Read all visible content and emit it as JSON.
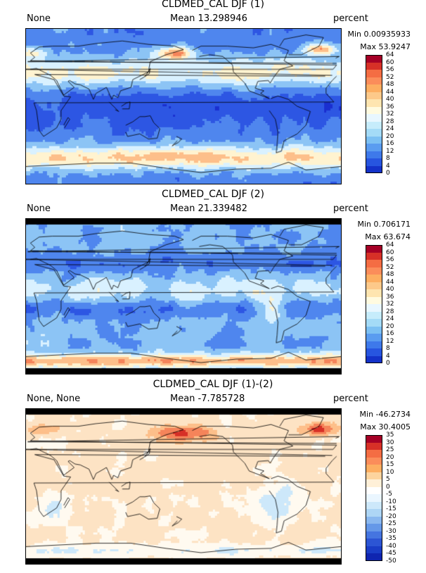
{
  "panels": [
    {
      "title": "CLDMED_CAL DJF (1)",
      "left_label": "None",
      "mean_text": "Mean 13.298946",
      "units": "percent",
      "min_text": "Min 0.00935933",
      "max_text": "Max 53.9247",
      "colorbar_ticks": [
        "64",
        "60",
        "56",
        "52",
        "48",
        "44",
        "40",
        "36",
        "32",
        "28",
        "24",
        "20",
        "16",
        "12",
        "8",
        "4",
        "0"
      ],
      "colorbar_colors": [
        "#a50026",
        "#d73027",
        "#f46d43",
        "#fb8d5a",
        "#fdae61",
        "#fdc98a",
        "#fee5b0",
        "#fffbe0",
        "#e8f7ff",
        "#c6ecfb",
        "#a4dbf7",
        "#7cc0f3",
        "#5a9cf0",
        "#3e79ea",
        "#2755e0",
        "#1432c9"
      ],
      "map_palette": [
        "#1a2fd0",
        "#2d56e3",
        "#4f86ee",
        "#8cc4f5",
        "#d9f1ff",
        "#fff3d0",
        "#fdbf8a",
        "#f5845a"
      ],
      "map_variant": 1
    },
    {
      "title": "CLDMED_CAL DJF (2)",
      "left_label": "None",
      "mean_text": "Mean 21.339482",
      "units": "percent",
      "min_text": "Min 0.706171",
      "max_text": "Max 63.674",
      "colorbar_ticks": [
        "64",
        "60",
        "56",
        "52",
        "48",
        "44",
        "40",
        "36",
        "32",
        "28",
        "24",
        "20",
        "16",
        "12",
        "8",
        "4",
        "0"
      ],
      "colorbar_colors": [
        "#a50026",
        "#d73027",
        "#f46d43",
        "#fb8d5a",
        "#fdae61",
        "#fdc98a",
        "#fee5b0",
        "#fffbe0",
        "#e8f7ff",
        "#c6ecfb",
        "#a4dbf7",
        "#7cc0f3",
        "#5a9cf0",
        "#3e79ea",
        "#2755e0",
        "#1432c9"
      ],
      "map_palette": [
        "#1a2fd0",
        "#2d56e3",
        "#4f86ee",
        "#8cc4f5",
        "#d9f1ff",
        "#fff3d0",
        "#fdbf8a",
        "#f5845a"
      ],
      "map_variant": 2
    },
    {
      "title": "CLDMED_CAL DJF (1)-(2)",
      "left_label": "None, None",
      "mean_text": "Mean -7.785728",
      "units": "percent",
      "min_text": "Min -46.2734",
      "max_text": "Max 30.4005",
      "colorbar_ticks": [
        "35",
        "30",
        "25",
        "20",
        "15",
        "10",
        "5",
        "0",
        "-5",
        "-10",
        "-15",
        "-20",
        "-25",
        "-30",
        "-35",
        "-40",
        "-45",
        "-50"
      ],
      "colorbar_colors": [
        "#a50026",
        "#d73027",
        "#f46d43",
        "#fb8d5a",
        "#fdae61",
        "#fdd49e",
        "#fff0d8",
        "#ffffff",
        "#eaf6ff",
        "#cde8fa",
        "#aed6f5",
        "#8ab8ef",
        "#6598e8",
        "#4575e0",
        "#2c55d4",
        "#1a3dc6",
        "#0f25b0"
      ],
      "map_palette": [
        "#4575e0",
        "#8ab8ef",
        "#cde8fa",
        "#fffaf0",
        "#fde3c4",
        "#fdbf8a",
        "#f5845a",
        "#d73027"
      ],
      "map_variant": 3
    }
  ]
}
